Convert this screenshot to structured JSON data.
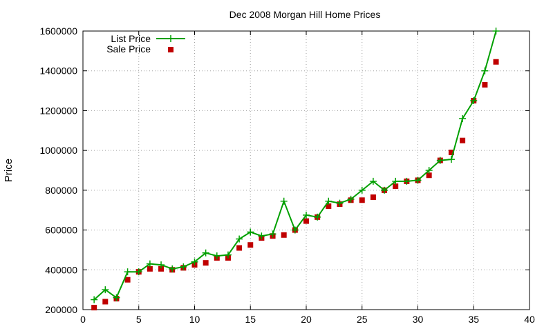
{
  "chart_data": {
    "type": "line",
    "title": "Dec 2008 Morgan Hill Home Prices",
    "xlabel": "",
    "ylabel": "Price",
    "xlim": [
      0,
      40
    ],
    "ylim": [
      200000,
      1600000
    ],
    "xticks": [
      0,
      5,
      10,
      15,
      20,
      25,
      30,
      35,
      40
    ],
    "yticks": [
      200000,
      400000,
      600000,
      800000,
      1000000,
      1200000,
      1400000,
      1600000
    ],
    "grid": true,
    "legend_position": "top-left",
    "series": [
      {
        "name": "List Price",
        "style": "line-plus",
        "color": "#00a000",
        "x": [
          1,
          2,
          3,
          4,
          5,
          6,
          7,
          8,
          9,
          10,
          11,
          12,
          13,
          14,
          15,
          16,
          17,
          18,
          19,
          20,
          21,
          22,
          23,
          24,
          25,
          26,
          27,
          28,
          29,
          30,
          31,
          32,
          33,
          34,
          35,
          36,
          37
        ],
        "values": [
          250000,
          300000,
          260000,
          390000,
          390000,
          430000,
          425000,
          405000,
          415000,
          440000,
          485000,
          470000,
          475000,
          555000,
          590000,
          570000,
          580000,
          745000,
          600000,
          675000,
          665000,
          745000,
          735000,
          755000,
          800000,
          845000,
          800000,
          845000,
          845000,
          850000,
          900000,
          950000,
          955000,
          1160000,
          1250000,
          1400000,
          1600000
        ]
      },
      {
        "name": "Sale Price",
        "style": "square-markers",
        "color": "#c00000",
        "x": [
          1,
          2,
          3,
          4,
          5,
          6,
          7,
          8,
          9,
          10,
          11,
          12,
          13,
          14,
          15,
          16,
          17,
          18,
          19,
          20,
          21,
          22,
          23,
          24,
          25,
          26,
          27,
          28,
          29,
          30,
          31,
          32,
          33,
          34,
          35,
          36,
          37
        ],
        "values": [
          210000,
          240000,
          255000,
          350000,
          390000,
          405000,
          405000,
          400000,
          410000,
          425000,
          435000,
          460000,
          460000,
          510000,
          525000,
          560000,
          570000,
          575000,
          600000,
          645000,
          665000,
          720000,
          730000,
          750000,
          750000,
          765000,
          800000,
          820000,
          845000,
          850000,
          875000,
          950000,
          990000,
          1050000,
          1250000,
          1330000,
          1445000
        ]
      }
    ]
  }
}
